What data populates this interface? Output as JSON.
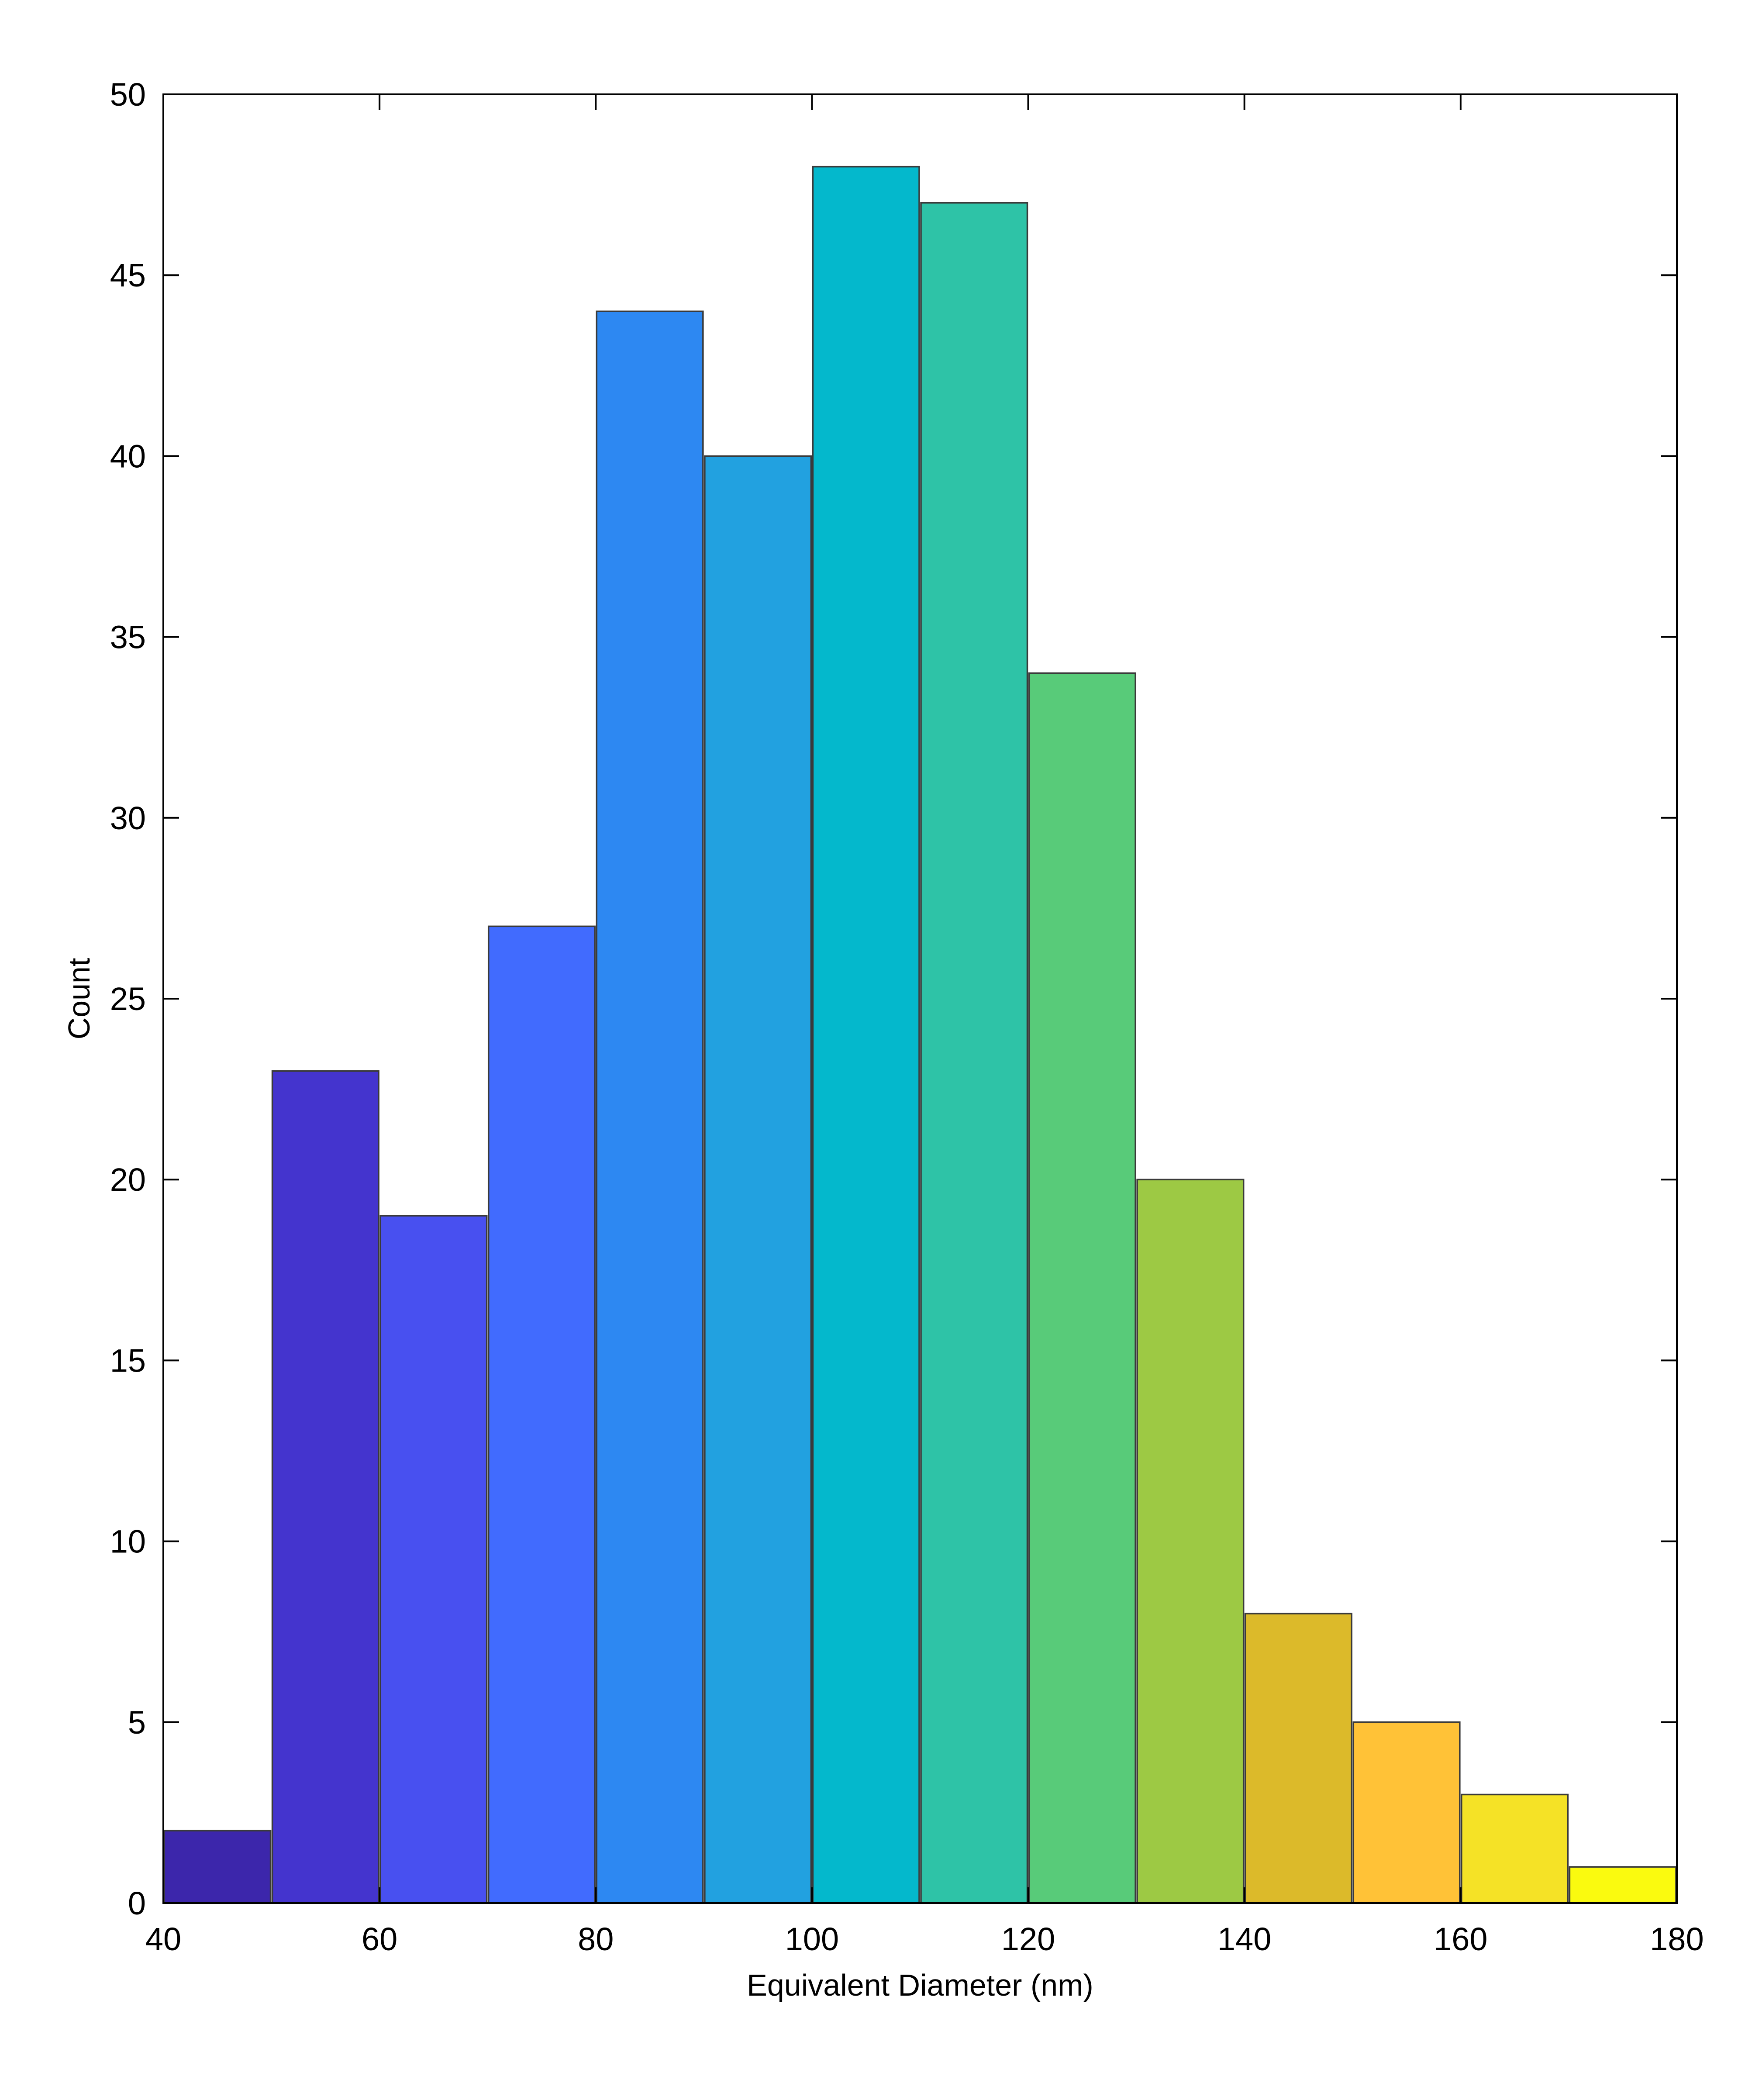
{
  "chart_data": {
    "type": "bar",
    "subtype": "histogram",
    "title": "",
    "xlabel": "Equivalent Diameter (nm)",
    "ylabel": "Count",
    "xlim": [
      40,
      180
    ],
    "ylim": [
      0,
      50
    ],
    "xticks": [
      40,
      60,
      80,
      100,
      120,
      140,
      160,
      180
    ],
    "yticks": [
      0,
      5,
      10,
      15,
      20,
      25,
      30,
      35,
      40,
      45,
      50
    ],
    "bin_width": 10,
    "bins": [
      {
        "start": 40,
        "end": 50,
        "value": 2,
        "color": "#3C26AB"
      },
      {
        "start": 50,
        "end": 60,
        "value": 23,
        "color": "#4434CE"
      },
      {
        "start": 60,
        "end": 70,
        "value": 19,
        "color": "#4850F0"
      },
      {
        "start": 70,
        "end": 80,
        "value": 27,
        "color": "#416BFE"
      },
      {
        "start": 80,
        "end": 90,
        "value": 44,
        "color": "#2D88F2"
      },
      {
        "start": 90,
        "end": 100,
        "value": 40,
        "color": "#22A1E0"
      },
      {
        "start": 100,
        "end": 110,
        "value": 48,
        "color": "#04B8CC"
      },
      {
        "start": 110,
        "end": 120,
        "value": 47,
        "color": "#2EC3A7"
      },
      {
        "start": 120,
        "end": 130,
        "value": 34,
        "color": "#58CB79"
      },
      {
        "start": 130,
        "end": 140,
        "value": 20,
        "color": "#9DC944"
      },
      {
        "start": 140,
        "end": 150,
        "value": 8,
        "color": "#DCBA2A"
      },
      {
        "start": 150,
        "end": 160,
        "value": 5,
        "color": "#FFC237"
      },
      {
        "start": 160,
        "end": 170,
        "value": 3,
        "color": "#F5E226"
      },
      {
        "start": 170,
        "end": 180,
        "value": 1,
        "color": "#FAFA0F"
      }
    ],
    "grid": false,
    "legend": "none"
  }
}
